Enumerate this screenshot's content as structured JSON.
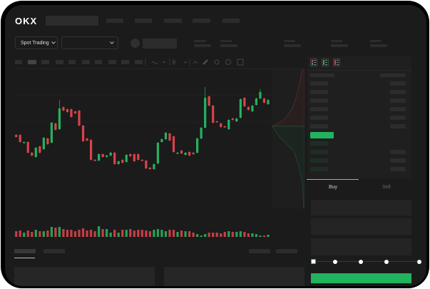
{
  "header": {
    "logo": "OKX"
  },
  "market": {
    "selector_label": "Spot Trading",
    "pair_selector_label": ""
  },
  "orderbook": {
    "view_icons": [
      "orderbook-both-icon",
      "orderbook-bids-icon",
      "orderbook-asks-icon"
    ]
  },
  "trade": {
    "tabs": [
      {
        "label": "Buy",
        "active": true
      },
      {
        "label": "Sell",
        "active": false
      }
    ],
    "slider_percent": 0
  },
  "colors": {
    "up": "#26b15f",
    "down": "#d9434a",
    "accent": "#22c55e",
    "bg": "#1b1b1b"
  },
  "chart_data": {
    "type": "candlestick",
    "candles": [
      [
        58,
        55
      ],
      [
        58,
        48
      ],
      [
        47,
        48
      ],
      [
        48,
        33
      ],
      [
        33,
        29
      ],
      [
        27,
        40
      ],
      [
        42,
        33
      ],
      [
        38,
        54
      ],
      [
        53,
        45
      ],
      [
        47,
        75
      ],
      [
        74,
        65
      ],
      [
        66,
        95
      ],
      [
        97,
        92
      ],
      [
        94,
        90
      ],
      [
        94,
        83
      ],
      [
        91,
        88
      ],
      [
        92,
        71
      ],
      [
        71,
        49
      ],
      [
        53,
        50
      ],
      [
        51,
        23
      ],
      [
        23,
        22
      ],
      [
        22,
        31
      ],
      [
        31,
        27
      ],
      [
        27,
        29
      ],
      [
        29,
        33
      ],
      [
        33,
        17
      ],
      [
        17,
        21
      ],
      [
        23,
        19
      ],
      [
        20,
        30
      ],
      [
        31,
        28
      ],
      [
        31,
        21
      ],
      [
        31,
        23
      ],
      [
        23,
        22
      ],
      [
        22,
        11
      ],
      [
        12,
        10
      ],
      [
        10,
        17
      ],
      [
        18,
        47
      ],
      [
        48,
        52
      ],
      [
        52,
        61
      ],
      [
        60,
        50
      ],
      [
        56,
        34
      ],
      [
        32,
        33
      ],
      [
        36,
        32
      ],
      [
        30,
        33
      ],
      [
        34,
        29
      ],
      [
        33,
        31
      ],
      [
        33,
        53
      ],
      [
        53,
        68
      ],
      [
        68,
        110
      ],
      [
        112,
        99
      ],
      [
        99,
        75
      ],
      [
        77,
        76
      ],
      [
        74,
        69
      ],
      [
        70,
        69
      ],
      [
        66,
        79
      ],
      [
        81,
        79
      ],
      [
        77,
        81
      ],
      [
        82,
        108
      ],
      [
        110,
        98
      ],
      [
        97,
        93
      ],
      [
        91,
        99
      ],
      [
        100,
        109
      ],
      [
        109,
        118
      ],
      [
        109,
        103
      ],
      [
        101,
        107
      ]
    ],
    "highs": {
      "11": 107,
      "48": 125,
      "62": 122
    },
    "volumes": [
      8,
      9,
      6,
      9,
      7,
      10,
      8,
      8,
      9,
      14,
      13,
      14,
      11,
      10,
      10,
      8,
      10,
      12,
      9,
      10,
      8,
      15,
      11,
      11,
      6,
      10,
      6,
      10,
      10,
      11,
      9,
      10,
      10,
      9,
      8,
      10,
      11,
      10,
      8,
      10,
      10,
      7,
      9,
      8,
      8,
      6,
      4,
      2,
      4,
      6,
      6,
      6,
      5,
      7,
      8,
      7,
      7,
      8,
      7,
      5,
      5,
      4,
      2,
      2,
      3
    ]
  }
}
